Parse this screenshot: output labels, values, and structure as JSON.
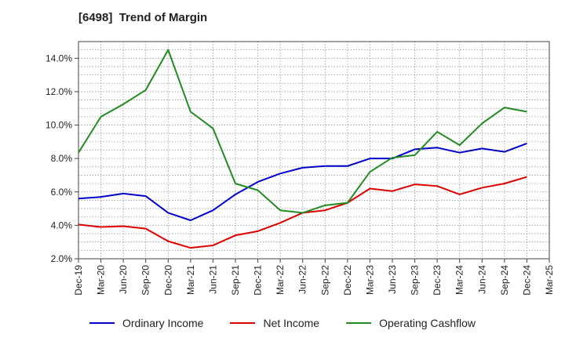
{
  "chart_data": {
    "type": "line",
    "title": "[6498]  Trend of Margin",
    "xlabel": "",
    "ylabel": "",
    "x": [
      "Dec-19",
      "Mar-20",
      "Jun-20",
      "Sep-20",
      "Dec-20",
      "Mar-21",
      "Jun-21",
      "Sep-21",
      "Dec-21",
      "Mar-22",
      "Jun-22",
      "Sep-22",
      "Dec-22",
      "Mar-23",
      "Jun-23",
      "Sep-23",
      "Dec-23",
      "Mar-24",
      "Jun-24",
      "Sep-24",
      "Dec-24",
      "Mar-25"
    ],
    "ylim": [
      2.0,
      15.0
    ],
    "yticks": [
      2.0,
      4.0,
      6.0,
      8.0,
      10.0,
      12.0,
      14.0
    ],
    "ytick_labels": [
      "2.0%",
      "4.0%",
      "6.0%",
      "8.0%",
      "10.0%",
      "12.0%",
      "14.0%"
    ],
    "grid": true,
    "legend_position": "bottom",
    "series": [
      {
        "name": "Ordinary Income",
        "color": "#0000cc",
        "values": [
          5.6,
          5.7,
          5.9,
          5.75,
          4.75,
          4.3,
          4.9,
          5.85,
          6.6,
          7.1,
          7.45,
          7.55,
          7.55,
          8.0,
          8.0,
          8.55,
          8.65,
          8.35,
          8.6,
          8.4,
          8.9,
          null
        ]
      },
      {
        "name": "Net Income",
        "color": "#dd0000",
        "values": [
          4.05,
          3.9,
          3.95,
          3.8,
          3.05,
          2.65,
          2.8,
          3.4,
          3.65,
          4.15,
          4.75,
          4.9,
          5.35,
          6.2,
          6.05,
          6.45,
          6.35,
          5.85,
          6.25,
          6.5,
          6.9,
          null
        ]
      },
      {
        "name": "Operating Cashflow",
        "color": "#228b22",
        "values": [
          8.35,
          10.5,
          11.25,
          12.1,
          14.5,
          10.8,
          9.8,
          6.5,
          6.1,
          4.9,
          4.75,
          5.2,
          5.35,
          7.2,
          8.05,
          8.2,
          9.6,
          8.8,
          10.1,
          11.05,
          10.8,
          null
        ]
      }
    ]
  }
}
